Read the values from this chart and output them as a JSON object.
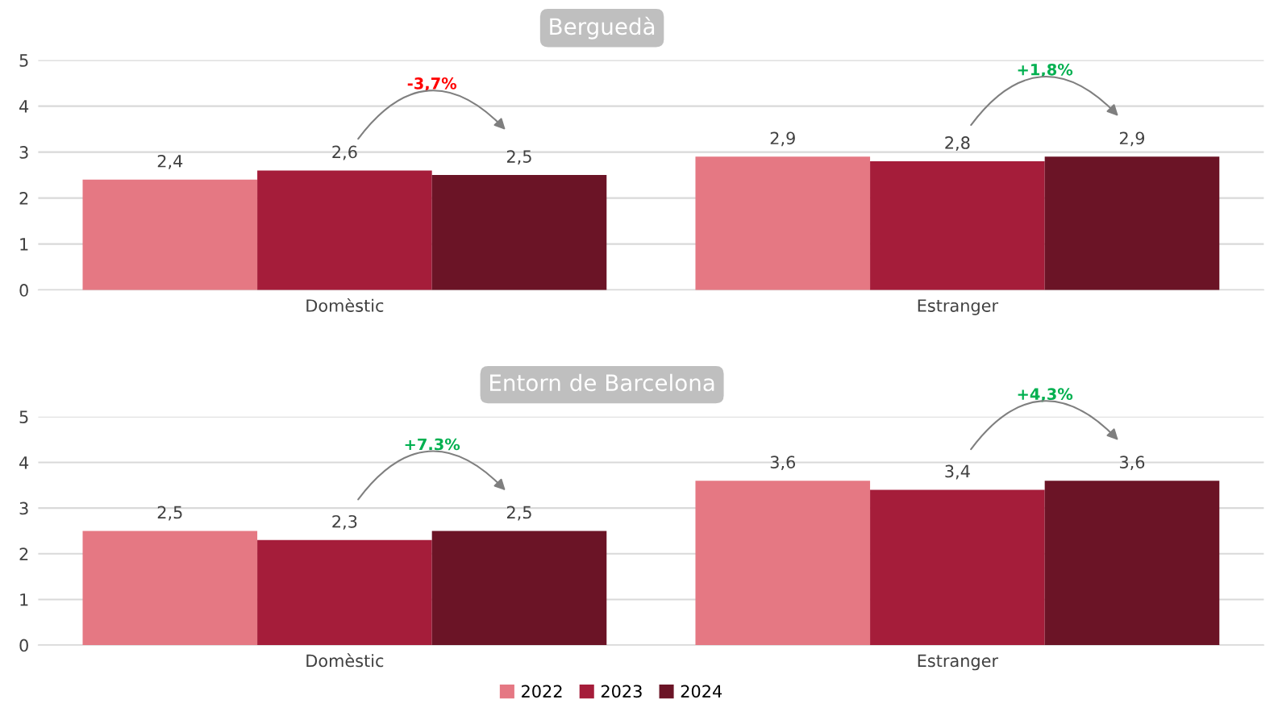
{
  "chart_data": [
    {
      "type": "bar",
      "title": "Berguedà",
      "categories": [
        "Domèstic",
        "Estranger"
      ],
      "series": [
        {
          "name": "2022",
          "color": "#e57883",
          "values": [
            2.4,
            2.9
          ],
          "value_labels": [
            "2,4",
            "2,9"
          ]
        },
        {
          "name": "2023",
          "color": "#a51d3a",
          "values": [
            2.6,
            2.8
          ],
          "value_labels": [
            "2,6",
            "2,8"
          ]
        },
        {
          "name": "2024",
          "color": "#6b1426",
          "values": [
            2.5,
            2.9
          ],
          "value_labels": [
            "2,5",
            "2,9"
          ]
        }
      ],
      "ylim": [
        0,
        5
      ],
      "yticks": [
        0,
        1,
        2,
        3,
        4,
        5
      ],
      "grid": "y",
      "legend": "bottom",
      "annotations": [
        "-3,7%",
        "+1,8%"
      ]
    },
    {
      "type": "bar",
      "title": "Entorn de Barcelona",
      "categories": [
        "Domèstic",
        "Estranger"
      ],
      "series": [
        {
          "name": "2022",
          "color": "#e57883",
          "values": [
            2.5,
            3.6
          ],
          "value_labels": [
            "2,5",
            "3,6"
          ]
        },
        {
          "name": "2023",
          "color": "#a51d3a",
          "values": [
            2.3,
            3.4
          ],
          "value_labels": [
            "2,3",
            "3,4"
          ]
        },
        {
          "name": "2024",
          "color": "#6b1426",
          "values": [
            2.5,
            3.6
          ],
          "value_labels": [
            "2,5",
            "3,6"
          ]
        }
      ],
      "ylim": [
        0,
        5
      ],
      "yticks": [
        0,
        1,
        2,
        3,
        4,
        5
      ],
      "grid": "y",
      "annotations": [
        "+7.3%",
        "+4,3%"
      ]
    }
  ]
}
